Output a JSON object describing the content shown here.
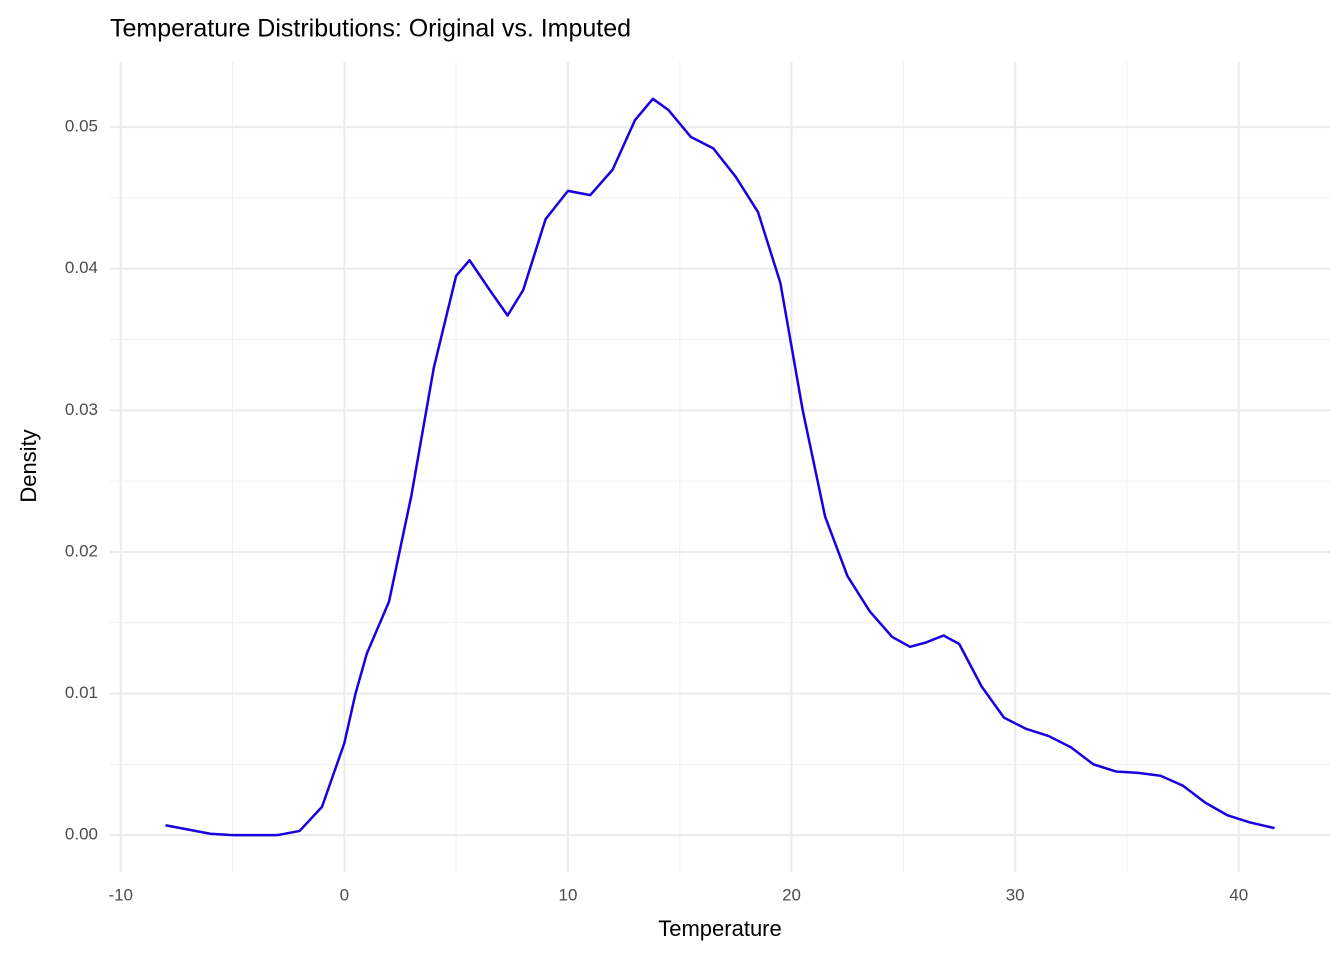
{
  "chart_data": {
    "type": "line",
    "title": "Temperature Distributions: Original vs. Imputed",
    "x_label": "Temperature",
    "y_label": "Density",
    "x": [
      -8,
      -7,
      -6,
      -5,
      -4,
      -3,
      -2,
      -1,
      0,
      0.5,
      1,
      2,
      3,
      4,
      5,
      5.6,
      6.5,
      7.3,
      8,
      9,
      10,
      11,
      12,
      13,
      13.8,
      14.5,
      15.5,
      16.5,
      17.5,
      18.5,
      19.5,
      20.5,
      21.5,
      22.5,
      23.5,
      24.5,
      25.3,
      26,
      26.8,
      27.5,
      28.5,
      29.5,
      30.5,
      31.5,
      32.5,
      33.5,
      34.5,
      35.5,
      36.5,
      37.5,
      38.5,
      39.5,
      40.5,
      41.6
    ],
    "values": [
      0.0007,
      0.0004,
      0.0001,
      0,
      0,
      0,
      0.0003,
      0.002,
      0.0065,
      0.01,
      0.0128,
      0.0165,
      0.024,
      0.033,
      0.0395,
      0.0406,
      0.0385,
      0.0367,
      0.0385,
      0.0435,
      0.0455,
      0.0452,
      0.047,
      0.0505,
      0.052,
      0.0512,
      0.0493,
      0.0485,
      0.0465,
      0.044,
      0.039,
      0.03,
      0.0225,
      0.0183,
      0.0158,
      0.014,
      0.0133,
      0.0136,
      0.0141,
      0.0135,
      0.0105,
      0.0083,
      0.0075,
      0.007,
      0.0062,
      0.005,
      0.0045,
      0.0044,
      0.0042,
      0.0035,
      0.0023,
      0.0014,
      0.0009,
      0.0005
    ],
    "color": "#1a00e0",
    "xlim": [
      -10.48,
      44.08
    ],
    "ylim": [
      -0.0026,
      0.0546
    ],
    "xticks": [
      -10,
      0,
      10,
      20,
      30,
      40
    ],
    "yticks": [
      {
        "value": 0,
        "label": "0.00"
      },
      0.01,
      0.02,
      0.03,
      0.04,
      0.05
    ],
    "grid": true
  }
}
